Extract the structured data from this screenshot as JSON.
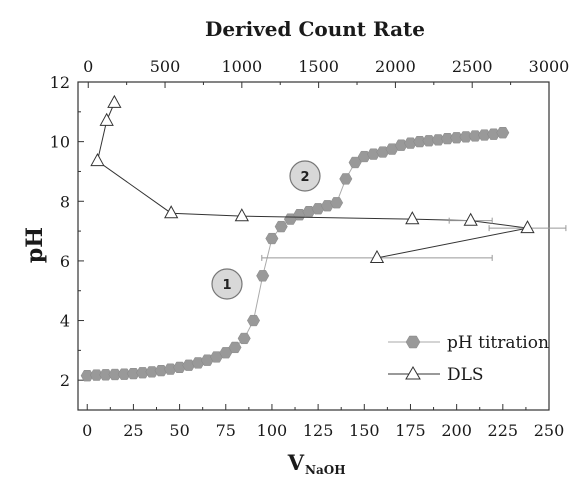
{
  "chart_data": {
    "type": "scatter",
    "title": "Derived Count Rate",
    "xlabel": "V",
    "xlabel_sub": "NaOH",
    "ylabel": "pH",
    "x_bottom": {
      "lim": [
        -5,
        250
      ],
      "ticks": [
        0,
        25,
        50,
        75,
        100,
        125,
        150,
        175,
        200,
        225,
        250
      ]
    },
    "x_top": {
      "lim": [
        -66.7,
        3000
      ],
      "ticks": [
        0,
        500,
        1000,
        1500,
        2000,
        2500,
        3000
      ]
    },
    "y": {
      "lim": [
        1,
        12
      ],
      "ticks": [
        2,
        4,
        6,
        8,
        10,
        12
      ]
    },
    "grid": false,
    "legend_position": "bottom-right",
    "series": [
      {
        "name": "pH titration",
        "axis": "bottom",
        "marker": "hexagon",
        "color": "#999999",
        "x": [
          0,
          5,
          10,
          15,
          20,
          25,
          30,
          35,
          40,
          45,
          50,
          55,
          60,
          65,
          70,
          75,
          80,
          85,
          90,
          95,
          100,
          105,
          110,
          115,
          120,
          125,
          130,
          135,
          140,
          145,
          150,
          155,
          160,
          165,
          170,
          175,
          180,
          185,
          190,
          195,
          200,
          205,
          210,
          215,
          220,
          225
        ],
        "y": [
          2.15,
          2.17,
          2.18,
          2.19,
          2.2,
          2.22,
          2.25,
          2.28,
          2.32,
          2.37,
          2.43,
          2.5,
          2.58,
          2.67,
          2.78,
          2.92,
          3.1,
          3.4,
          4.0,
          5.5,
          6.75,
          7.15,
          7.4,
          7.55,
          7.65,
          7.75,
          7.85,
          7.95,
          8.75,
          9.3,
          9.5,
          9.58,
          9.65,
          9.75,
          9.88,
          9.95,
          10.0,
          10.03,
          10.06,
          10.1,
          10.13,
          10.16,
          10.19,
          10.22,
          10.25,
          10.3
        ]
      },
      {
        "name": "DLS",
        "axis": "top",
        "marker": "open-triangle",
        "color": "#333333",
        "x": [
          170,
          120,
          60,
          540,
          1000,
          2110,
          2490,
          2860,
          1880
        ],
        "y": [
          11.3,
          10.7,
          9.35,
          7.6,
          7.5,
          7.4,
          7.35,
          7.1,
          6.1
        ],
        "x_err": [
          0,
          0,
          0,
          0,
          0,
          0,
          140,
          250,
          750
        ]
      }
    ],
    "annotations": [
      "1",
      "2"
    ]
  }
}
